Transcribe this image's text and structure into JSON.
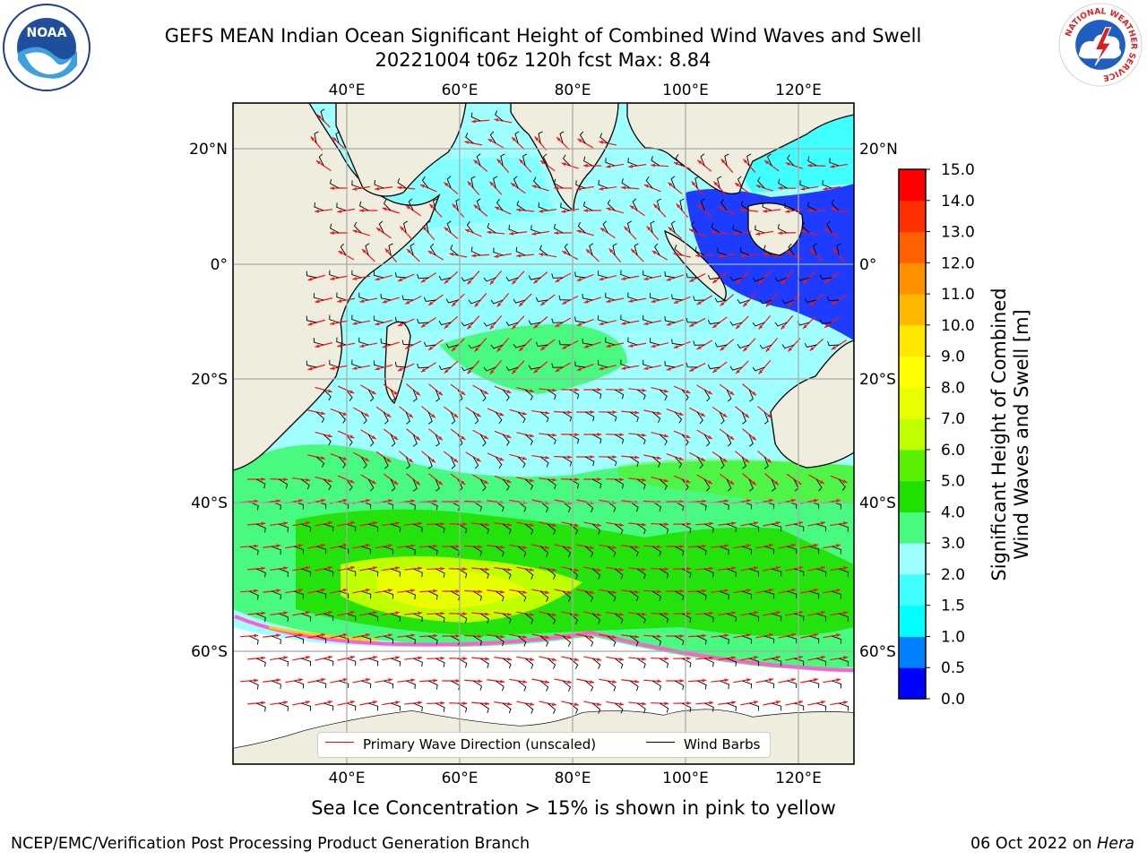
{
  "header": {
    "title_line1": "GEFS MEAN Indian Ocean Significant Height of Combined Wind Waves and Swell",
    "title_line2": "20221004 t06z 120h fcst   Max: 8.84"
  },
  "logos": {
    "left": "noaa-logo",
    "left_text": "NOAA",
    "right": "national-weather-service-logo",
    "right_text": "NATIONAL WEATHER SERVICE"
  },
  "map": {
    "region": "Indian Ocean",
    "lon_range": [
      20,
      130
    ],
    "lat_range": [
      -74,
      27
    ],
    "lon_ticks": [
      "40°E",
      "60°E",
      "80°E",
      "100°E",
      "120°E"
    ],
    "lat_ticks": [
      "20°N",
      "0°",
      "20°S",
      "40°S",
      "60°S"
    ],
    "grid": true,
    "land_color": "#efeddd",
    "field": "Significant Height of Combined Wind Waves and Swell",
    "max_value": 8.84
  },
  "colorbar": {
    "label_line1": "Significant Height of Combined",
    "label_line2": "Wind Waves and Swell [m]",
    "ticks": [
      "0.0",
      "0.5",
      "1.0",
      "1.5",
      "2.0",
      "3.0",
      "4.0",
      "5.0",
      "6.0",
      "7.0",
      "8.0",
      "9.0",
      "10.0",
      "11.0",
      "12.0",
      "13.0",
      "14.0",
      "15.0"
    ],
    "colors": [
      "#0000ff",
      "#0080ff",
      "#00ffff",
      "#40ffff",
      "#a0ffff",
      "#48fa80",
      "#20e000",
      "#58f000",
      "#c0ff00",
      "#e8ff00",
      "#ffff00",
      "#ffe800",
      "#ffb800",
      "#ff9000",
      "#ff6000",
      "#ff3000",
      "#ff0000"
    ]
  },
  "legend": {
    "primary_wave": "Primary Wave Direction (unscaled)",
    "primary_wave_color": "#ff0000",
    "wind_barbs": "Wind Barbs",
    "wind_barbs_color": "#000000"
  },
  "caption": "Sea Ice Concentration > 15% is shown in pink to yellow",
  "footer": {
    "left": "NCEP/EMC/Verification Post Processing Product Generation Branch",
    "right_date": "06 Oct 2022 on ",
    "right_host": "Hera"
  }
}
